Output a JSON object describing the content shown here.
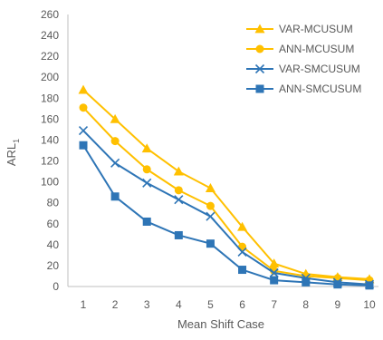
{
  "chart_data": {
    "type": "line",
    "title": "",
    "xlabel": "Mean Shift Case",
    "ylabel": "ARL",
    "ylabel_subscript": "1",
    "categories": [
      "1",
      "2",
      "3",
      "4",
      "5",
      "6",
      "7",
      "8",
      "9",
      "10"
    ],
    "ylim": [
      0,
      260
    ],
    "yticks": [
      "0",
      "20",
      "40",
      "60",
      "80",
      "100",
      "120",
      "140",
      "160",
      "180",
      "200",
      "220",
      "240",
      "260"
    ],
    "grid": false,
    "legend_position": "top-right",
    "series": [
      {
        "name": "VAR-MCUSUM",
        "color": "#FFC000",
        "marker": "triangle",
        "values": [
          188,
          160,
          132,
          110,
          94,
          57,
          22,
          12,
          9,
          7
        ]
      },
      {
        "name": "ANN-MCUSUM",
        "color": "#FFC000",
        "marker": "circle",
        "values": [
          171,
          139,
          112,
          92,
          77,
          38,
          15,
          10,
          8,
          6
        ]
      },
      {
        "name": "VAR-SMCUSUM",
        "color": "#2E75B6",
        "marker": "x",
        "values": [
          149,
          118,
          99,
          83,
          67,
          33,
          13,
          8,
          4,
          2
        ]
      },
      {
        "name": "ANN-SMCUSUM",
        "color": "#2E75B6",
        "marker": "square",
        "values": [
          135,
          86,
          62,
          49,
          41,
          16,
          6,
          4,
          2,
          1
        ]
      }
    ]
  }
}
